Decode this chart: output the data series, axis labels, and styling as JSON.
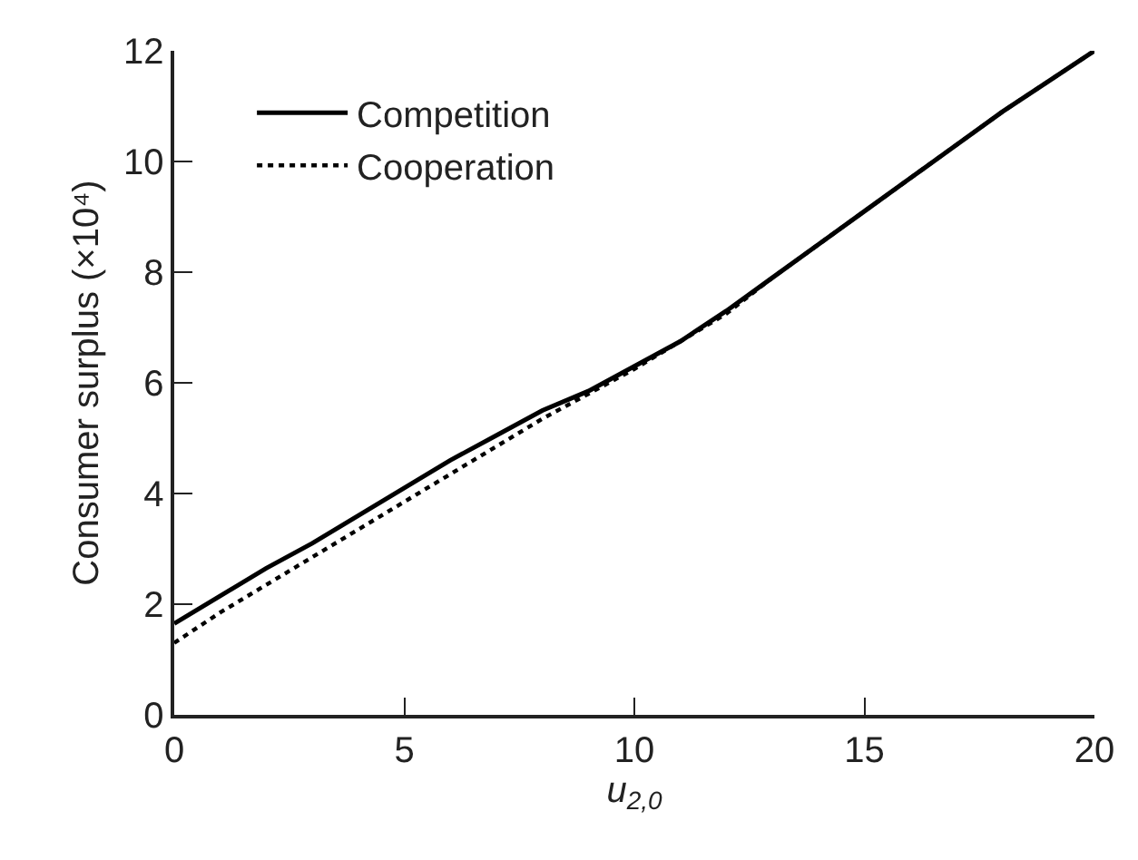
{
  "chart_data": {
    "type": "line",
    "xlabel": "u$_{2,0}$",
    "ylabel": "Consumer surplus (×10⁴)",
    "x": [
      0,
      1,
      2,
      3,
      4,
      5,
      6,
      7,
      8,
      9,
      10,
      11,
      12,
      13,
      14,
      15,
      16,
      17,
      18,
      19,
      20
    ],
    "series": [
      {
        "name": "Competition",
        "color": "#000000",
        "line_style": "solid",
        "values": [
          1.65,
          2.15,
          2.65,
          3.1,
          3.6,
          4.1,
          4.6,
          5.05,
          5.5,
          5.85,
          6.3,
          6.75,
          7.3,
          7.9,
          8.5,
          9.1,
          9.7,
          10.3,
          10.9,
          11.45,
          12.0
        ]
      },
      {
        "name": "Cooperation",
        "color": "#000000",
        "line_style": "dotted",
        "values": [
          1.3,
          1.85,
          2.35,
          2.85,
          3.35,
          3.85,
          4.35,
          4.85,
          5.35,
          5.8,
          6.25,
          6.75,
          7.25,
          7.9,
          8.5,
          9.1,
          9.7,
          10.3,
          10.9,
          11.45,
          12.0
        ]
      }
    ],
    "xlim": [
      0,
      20
    ],
    "xticks": [
      0,
      5,
      10,
      15,
      20
    ],
    "ylim": [
      0,
      12
    ],
    "yticks": [
      0,
      2,
      4,
      6,
      8,
      10,
      12
    ],
    "legend": "top left",
    "marker": "none"
  }
}
